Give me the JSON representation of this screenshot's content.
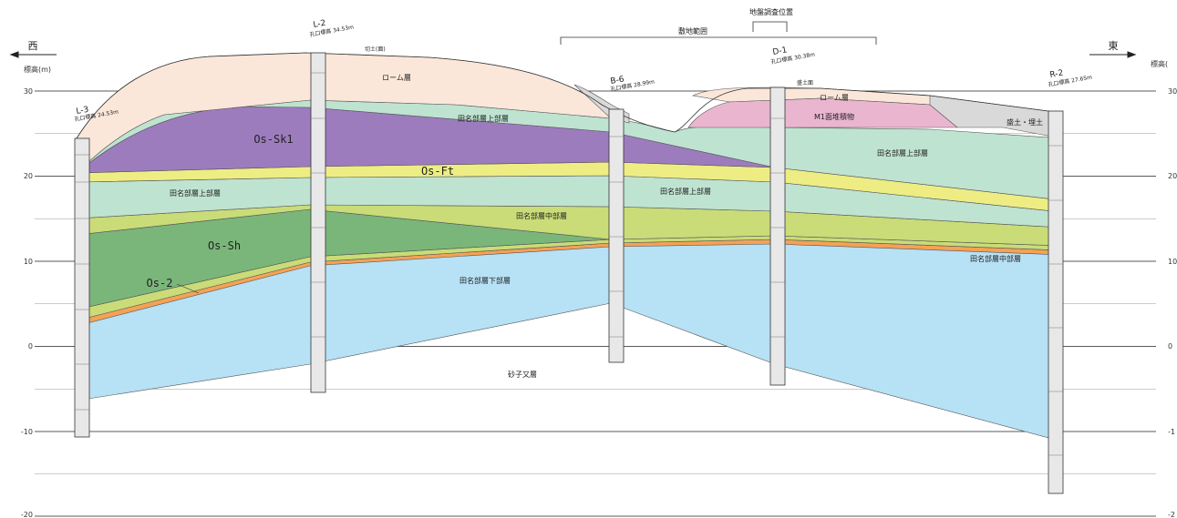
{
  "directions": {
    "west": "西",
    "east": "東"
  },
  "axis": {
    "left_title": "標高(m)",
    "right_title": "標高(",
    "ticks_left": [
      "30",
      "20",
      "10",
      "0",
      "-10",
      "-20"
    ],
    "ticks_right": [
      "30",
      "20",
      "10",
      "0",
      "-1",
      "-2"
    ]
  },
  "annotations": {
    "site_range": "敷地範囲",
    "pit_position": "地盤調査位置",
    "l2_surface": "切土(面)",
    "d1_surface": "盛土面"
  },
  "boreholes": [
    {
      "name": "L-3",
      "elevation": "孔口標高 24.53m"
    },
    {
      "name": "L-2",
      "elevation": "孔口標高 34.53m"
    },
    {
      "name": "B-6",
      "elevation": "孔口標高 28.99m"
    },
    {
      "name": "D-1",
      "elevation": "孔口標高 30.38m"
    },
    {
      "name": "R-2",
      "elevation": "孔口標高 27.65m"
    }
  ],
  "layers": {
    "loam": "ローム層",
    "loam_east": "ローム層",
    "fill": "盛土・埋土",
    "m1": "M1面堆積物",
    "tanabe_upper_top": "田名部層上部層",
    "tanabe_upper_east": "田名部層上部層",
    "os_sk1": "Os-Sk1",
    "os_ft": "Os-Ft",
    "tanabe_upper_west": "田名部層上部層",
    "tanabe_upper_mid": "田名部層上部層",
    "os_sh": "Os-Sh",
    "tanabe_middle": "田名部層中部層",
    "tanabe_middle_east": "田名部層中部層",
    "os_2": "Os-2",
    "tanabe_lower": "田名部層下部層",
    "gravel": "砂子又層"
  },
  "colors": {
    "loam": "#fbe7d9",
    "tanabe_upper": "#bfe3d1",
    "os_sk1": "#9d7cbe",
    "os_ft": "#eded84",
    "tanabe_middle": "#c9dc78",
    "os_sh": "#7ab67a",
    "os_2": "#f4a255",
    "tanabe_lower": "#b7e1f5",
    "m1": "#eab6cf",
    "fill": "#d9d9d9"
  }
}
